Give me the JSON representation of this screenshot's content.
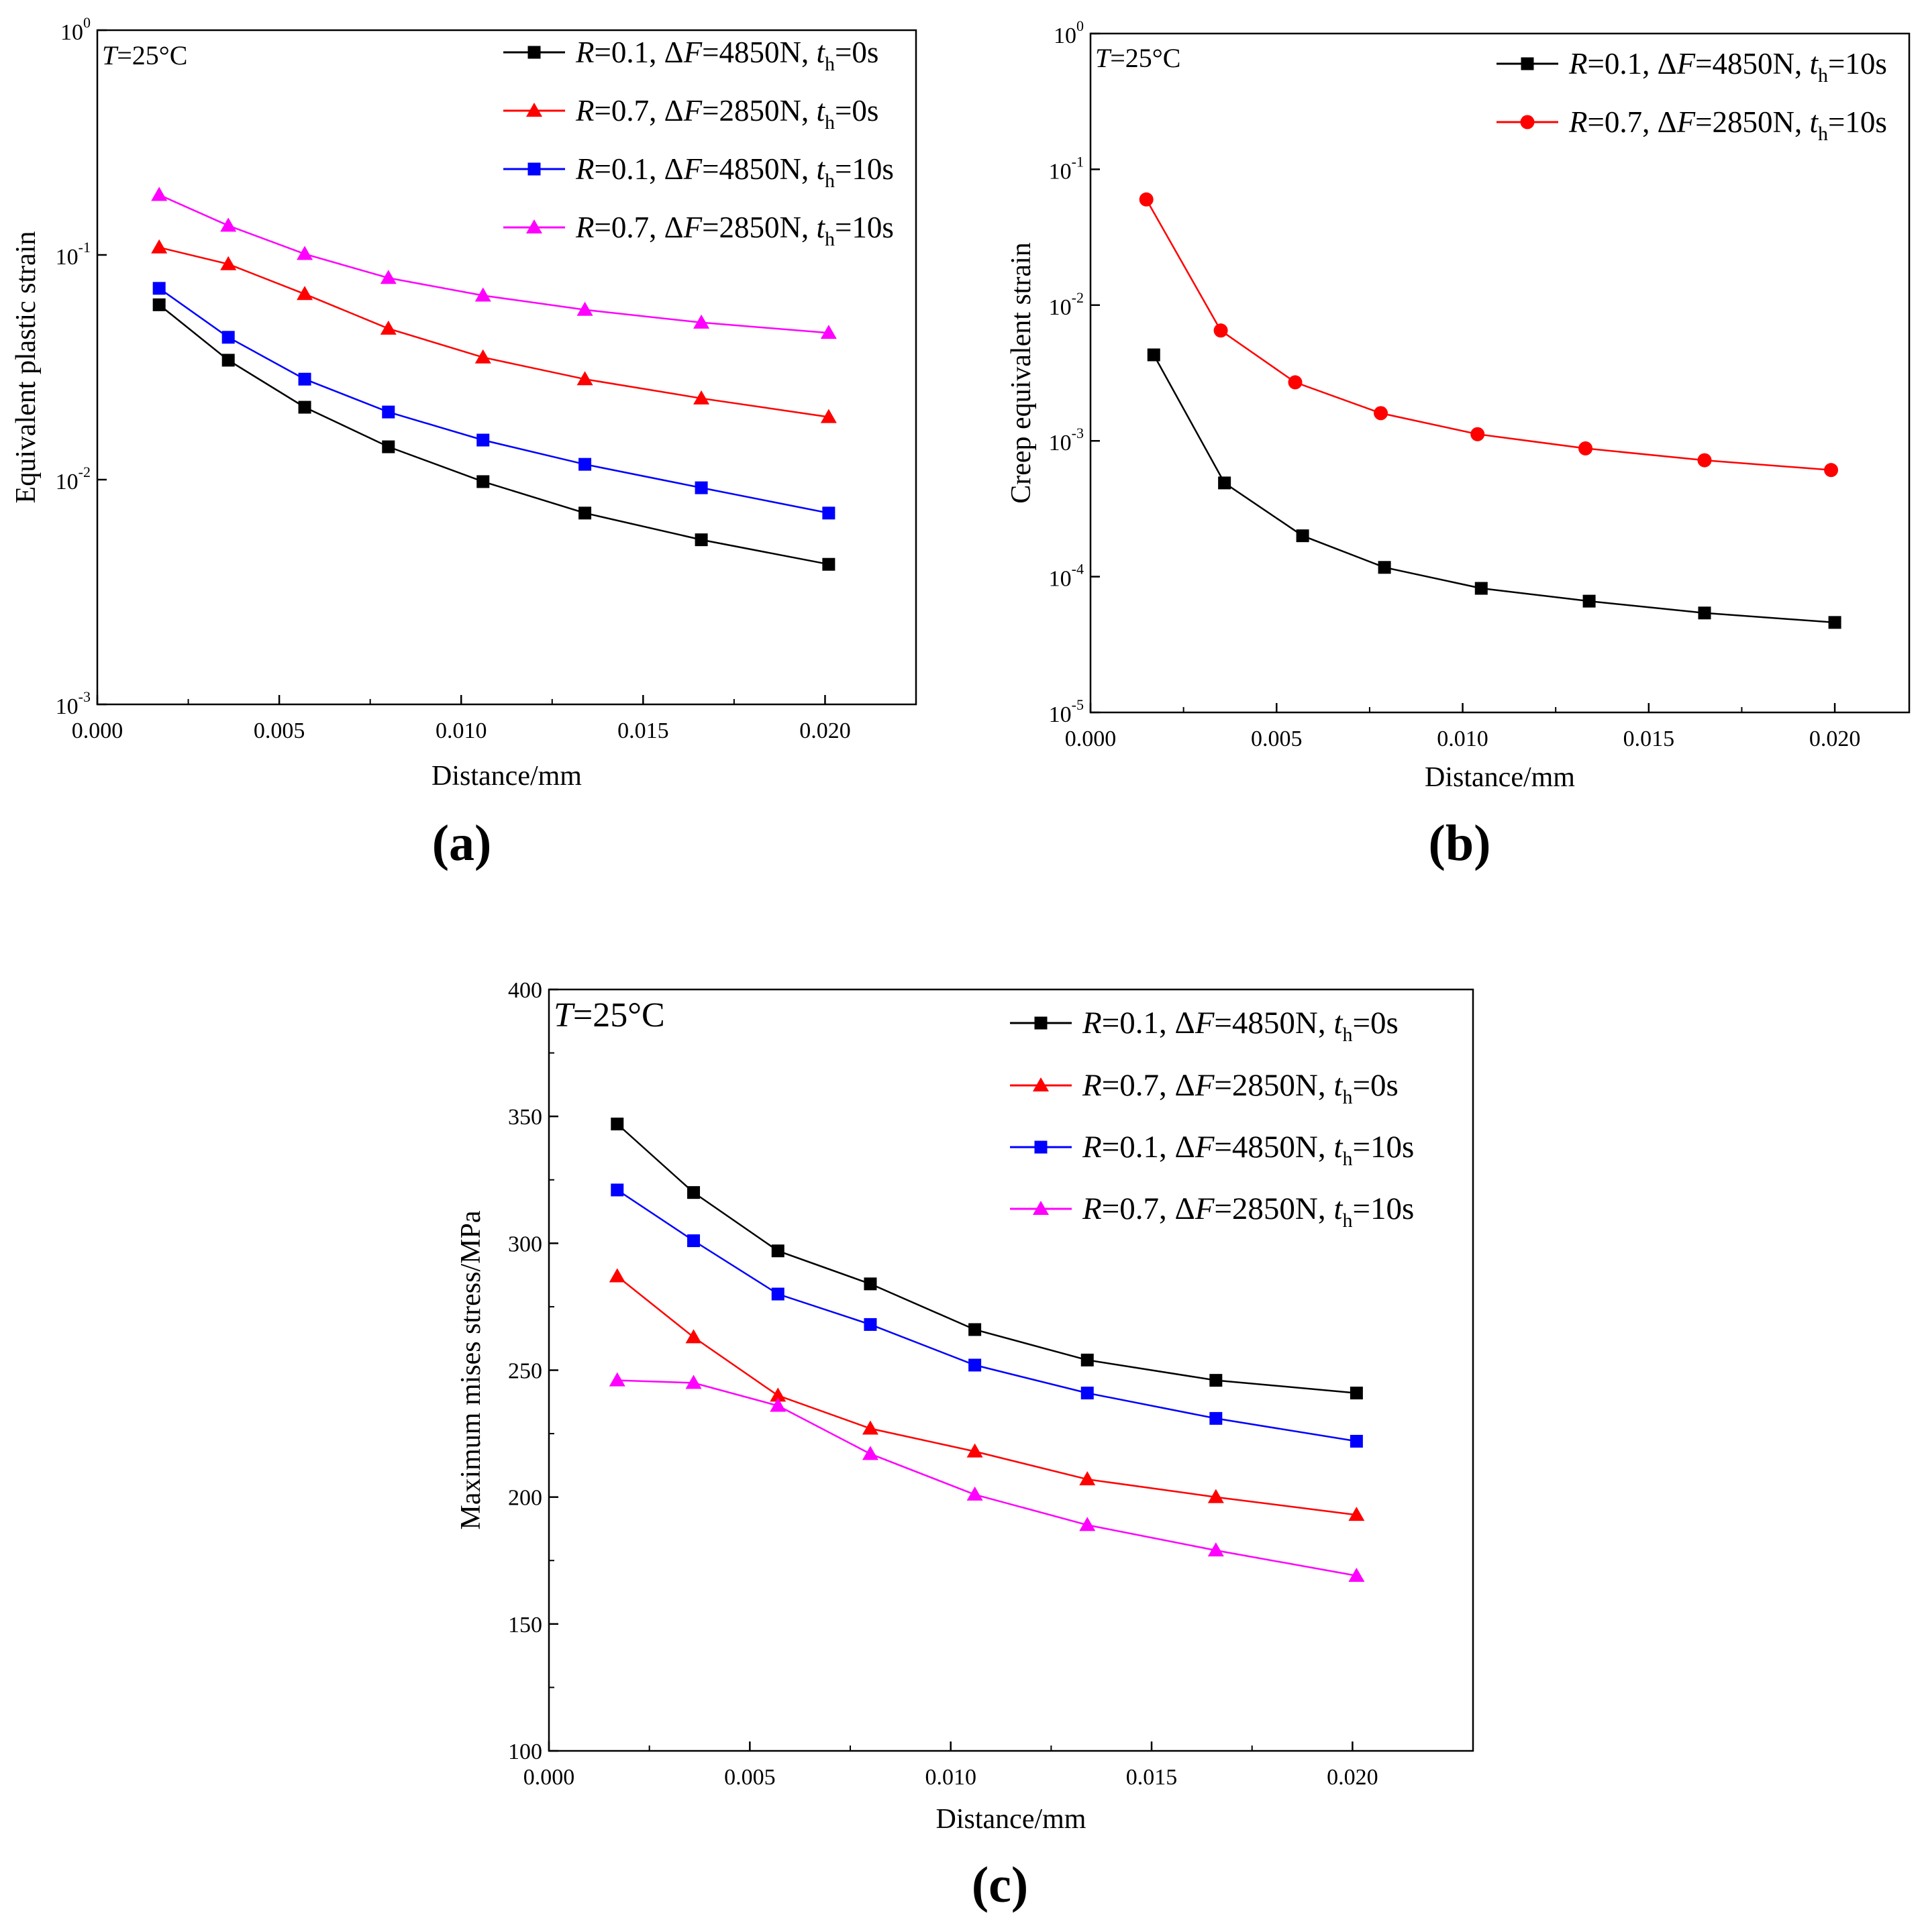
{
  "chart_data": [
    {
      "id": "a",
      "panel_label": "(a)",
      "type": "line",
      "yscale": "log",
      "annotation": {
        "var": "T",
        "rest": "=25°C"
      },
      "xlabel": "Distance/mm",
      "ylabel": "Equivalent plastic strain",
      "xlim": [
        0.0,
        0.0225
      ],
      "ylim": [
        0.001,
        1
      ],
      "xticks": [
        "0.000",
        "0.005",
        "0.010",
        "0.015",
        "0.020"
      ],
      "xtick_values": [
        0.0,
        0.005,
        0.01,
        0.015,
        0.02
      ],
      "yticks": [
        {
          "base": "10",
          "exp": "-3",
          "value": 0.001
        },
        {
          "base": "10",
          "exp": "-2",
          "value": 0.01
        },
        {
          "base": "10",
          "exp": "-1",
          "value": 0.1
        },
        {
          "base": "10",
          "exp": "0",
          "value": 1
        }
      ],
      "legend_position": "top-right",
      "x": [
        0.0017,
        0.0036,
        0.0057,
        0.008,
        0.0106,
        0.0134,
        0.0166,
        0.0201
      ],
      "series": [
        {
          "R": "0.1",
          "dF": "4850N",
          "th": "0s",
          "color": "#000000",
          "marker": "square",
          "values": [
            0.06,
            0.034,
            0.021,
            0.014,
            0.0098,
            0.0071,
            0.0054,
            0.0042
          ]
        },
        {
          "R": "0.7",
          "dF": "2850N",
          "th": "0s",
          "color": "#ff0000",
          "marker": "triangle",
          "values": [
            0.108,
            0.091,
            0.067,
            0.047,
            0.035,
            0.028,
            0.023,
            0.019
          ]
        },
        {
          "R": "0.1",
          "dF": "4850N",
          "th": "10s",
          "color": "#0000ff",
          "marker": "square",
          "values": [
            0.071,
            0.043,
            0.028,
            0.02,
            0.015,
            0.0117,
            0.0092,
            0.0071
          ]
        },
        {
          "R": "0.7",
          "dF": "2850N",
          "th": "10s",
          "color": "#ff00ff",
          "marker": "triangle",
          "values": [
            0.185,
            0.135,
            0.101,
            0.079,
            0.066,
            0.057,
            0.05,
            0.045
          ]
        }
      ]
    },
    {
      "id": "b",
      "panel_label": "(b)",
      "type": "line",
      "yscale": "log",
      "annotation": {
        "var": "T",
        "rest": "=25°C"
      },
      "xlabel": "Distance/mm",
      "ylabel": "Creep equivalent strain",
      "xlim": [
        0.0,
        0.022
      ],
      "ylim": [
        1e-05,
        1
      ],
      "xticks": [
        "0.000",
        "0.005",
        "0.010",
        "0.015",
        "0.020"
      ],
      "xtick_values": [
        0.0,
        0.005,
        0.01,
        0.015,
        0.02
      ],
      "yticks": [
        {
          "base": "10",
          "exp": "-5",
          "value": 1e-05
        },
        {
          "base": "10",
          "exp": "-4",
          "value": 0.0001
        },
        {
          "base": "10",
          "exp": "-3",
          "value": 0.001
        },
        {
          "base": "10",
          "exp": "-2",
          "value": 0.01
        },
        {
          "base": "10",
          "exp": "-1",
          "value": 0.1
        },
        {
          "base": "10",
          "exp": "0",
          "value": 1
        }
      ],
      "legend_position": "top-right",
      "series": [
        {
          "R": "0.1",
          "dF": "4850N",
          "th": "10s",
          "color": "#000000",
          "marker": "square",
          "x": [
            0.0017,
            0.0036,
            0.0057,
            0.0079,
            0.0105,
            0.0134,
            0.0165,
            0.02
          ],
          "values": [
            0.0043,
            0.00049,
            0.0002,
            0.000117,
            8.2e-05,
            6.6e-05,
            5.4e-05,
            4.6e-05
          ]
        },
        {
          "R": "0.7",
          "dF": "2850N",
          "th": "10s",
          "color": "#ff0000",
          "marker": "circle",
          "x": [
            0.0015,
            0.0035,
            0.0055,
            0.0078,
            0.0104,
            0.0133,
            0.0165,
            0.0199
          ],
          "values": [
            0.06,
            0.0065,
            0.0027,
            0.0016,
            0.00112,
            0.00088,
            0.00072,
            0.00061
          ]
        }
      ]
    },
    {
      "id": "c",
      "panel_label": "(c)",
      "type": "line",
      "yscale": "linear",
      "annotation": {
        "var": "T",
        "rest": "=25°C"
      },
      "xlabel": "Distance/mm",
      "ylabel": "Maximum mises stress/MPa",
      "xlim": [
        0.0,
        0.023
      ],
      "ylim": [
        100,
        400
      ],
      "xticks": [
        "0.000",
        "0.005",
        "0.010",
        "0.015",
        "0.020"
      ],
      "xtick_values": [
        0.0,
        0.005,
        0.01,
        0.015,
        0.02
      ],
      "yticks": [
        {
          "label": "100",
          "value": 100
        },
        {
          "label": "150",
          "value": 150
        },
        {
          "label": "200",
          "value": 200
        },
        {
          "label": "250",
          "value": 250
        },
        {
          "label": "300",
          "value": 300
        },
        {
          "label": "350",
          "value": 350
        },
        {
          "label": "400",
          "value": 400
        }
      ],
      "legend_position": "top-right",
      "x": [
        0.0017,
        0.0036,
        0.0057,
        0.008,
        0.0106,
        0.0134,
        0.0166,
        0.0201
      ],
      "series": [
        {
          "R": "0.1",
          "dF": "4850N",
          "th": "0s",
          "color": "#000000",
          "marker": "square",
          "values": [
            347,
            320,
            297,
            284,
            266,
            254,
            246,
            241
          ]
        },
        {
          "R": "0.7",
          "dF": "2850N",
          "th": "0s",
          "color": "#ff0000",
          "marker": "triangle",
          "values": [
            287,
            263,
            240,
            227,
            218,
            207,
            200,
            193
          ]
        },
        {
          "R": "0.1",
          "dF": "4850N",
          "th": "10s",
          "color": "#0000ff",
          "marker": "square",
          "values": [
            321,
            301,
            280,
            268,
            252,
            241,
            231,
            222
          ]
        },
        {
          "R": "0.7",
          "dF": "2850N",
          "th": "10s",
          "color": "#ff00ff",
          "marker": "triangle",
          "values": [
            246,
            245,
            236,
            217,
            201,
            189,
            179,
            169
          ]
        }
      ]
    }
  ]
}
